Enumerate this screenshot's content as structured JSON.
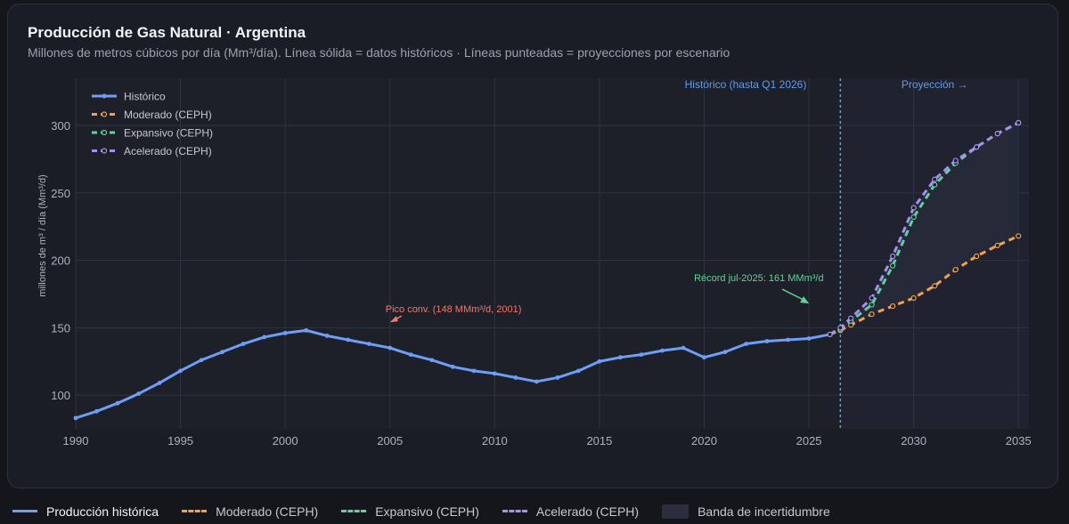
{
  "header": {
    "title": "Producción de Gas Natural · Argentina",
    "subtitle": "Millones de metros cúbicos por día (Mm³/día). Línea sólida = datos históricos · Líneas punteadas = proyecciones por escenario"
  },
  "colors": {
    "historic": "#6e9ef5",
    "moderado": "#f6a04d",
    "expansivo": "#5fd39a",
    "acelerado": "#a98ef5",
    "band": "#262a3a",
    "pico": "#f2776a",
    "record": "#5fd39a",
    "divider": "#5b9df0"
  },
  "chart_data": {
    "type": "line",
    "ylabel": "millones de m³ / día (Mm³/d)",
    "xlim": [
      1990,
      2035.5
    ],
    "ylim": [
      75,
      335
    ],
    "x_ticks": [
      1990,
      1995,
      2000,
      2005,
      2010,
      2015,
      2020,
      2025,
      2030,
      2035
    ],
    "y_ticks": [
      100,
      150,
      200,
      250,
      300
    ],
    "grid": true,
    "legend_position": "top-left",
    "legend": [
      "Histórico",
      "Moderado (CEPH)",
      "Expansivo (CEPH)",
      "Acelerado (CEPH)"
    ],
    "divider_x": 2026.5,
    "divider_label": "Histórico (hasta Q1 2026)",
    "projection_label": "Proyección →",
    "series": [
      {
        "name": "Histórico",
        "key": "historic",
        "x": [
          1990,
          1991,
          1992,
          1993,
          1994,
          1995,
          1996,
          1997,
          1998,
          1999,
          2000,
          2001,
          2002,
          2003,
          2004,
          2005,
          2006,
          2007,
          2008,
          2009,
          2010,
          2011,
          2012,
          2013,
          2014,
          2015,
          2016,
          2017,
          2018,
          2019,
          2020,
          2021,
          2022,
          2023,
          2024,
          2025,
          2026
        ],
        "y": [
          83,
          88,
          94,
          101,
          109,
          118,
          126,
          132,
          138,
          143,
          146,
          148,
          144,
          141,
          138,
          135,
          130,
          126,
          121,
          118,
          116,
          113,
          110,
          113,
          118,
          125,
          128,
          130,
          133,
          135,
          128,
          132,
          138,
          140,
          141,
          142,
          145
        ]
      },
      {
        "name": "Moderado (CEPH)",
        "key": "moderado",
        "x": [
          2026,
          2026.5,
          2027,
          2028,
          2029,
          2030,
          2031,
          2032,
          2033,
          2034,
          2035
        ],
        "y": [
          145,
          148,
          152,
          160,
          166,
          172,
          181,
          193,
          203,
          211,
          218
        ]
      },
      {
        "name": "Expansivo (CEPH)",
        "key": "expansivo",
        "x": [
          2026,
          2026.5,
          2027,
          2028,
          2029,
          2030,
          2031,
          2032,
          2033,
          2034,
          2035
        ],
        "y": [
          145,
          149,
          155,
          167,
          196,
          232,
          256,
          272,
          284,
          294,
          302
        ]
      },
      {
        "name": "Acelerado (CEPH)",
        "key": "acelerado",
        "x": [
          2026,
          2026.5,
          2027,
          2028,
          2029,
          2030,
          2031,
          2032,
          2033,
          2034,
          2035
        ],
        "y": [
          145,
          150,
          157,
          172,
          203,
          239,
          260,
          274,
          284,
          294,
          302
        ]
      }
    ],
    "annotations": [
      {
        "key": "pico",
        "text": "Pico conv. (148 MMm³/d, 2001)",
        "x": 2005,
        "y": 160
      },
      {
        "key": "record",
        "text": "Récord jul-2025: 161 MMm³/d",
        "x": 2025,
        "y": 168
      }
    ]
  },
  "footer": {
    "items": [
      {
        "label": "Producción histórica",
        "key": "historic"
      },
      {
        "label": "Moderado (CEPH)",
        "key": "moderado"
      },
      {
        "label": "Expansivo (CEPH)",
        "key": "expansivo"
      },
      {
        "label": "Acelerado (CEPH)",
        "key": "acelerado"
      },
      {
        "label": "Banda de incertidumbre",
        "key": "band"
      }
    ]
  }
}
